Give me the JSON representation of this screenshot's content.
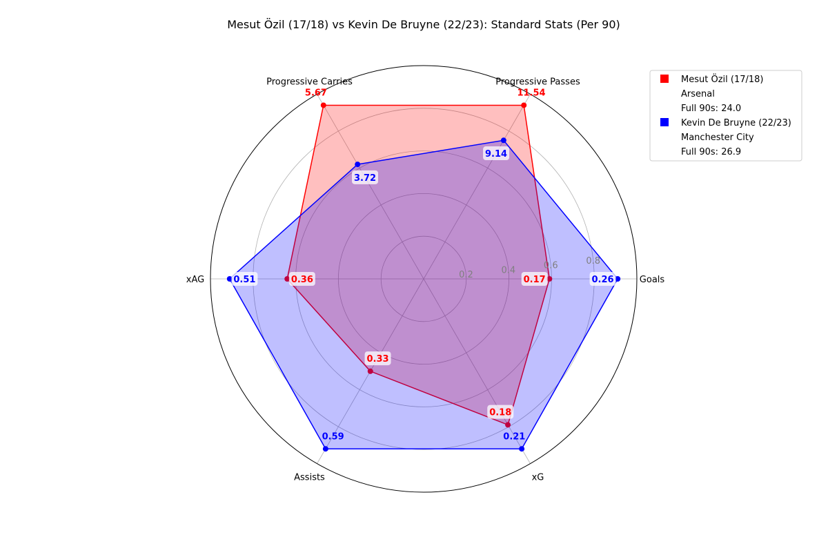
{
  "chart_data": {
    "type": "radar",
    "title": "Mesut Özil (17/18) vs Kevin De Bruyne (22/23): Standard Stats (Per 90)",
    "axes": [
      "Goals",
      "Progressive Passes",
      "Progressive Carries",
      "xAG",
      "Assists",
      "xG"
    ],
    "radial_ticks": [
      0.2,
      0.4,
      0.6,
      0.8
    ],
    "radial_range": [
      0,
      1.0
    ],
    "grid": true,
    "legend_position": "top-right",
    "series": [
      {
        "name": "Mesut Özil (17/18)",
        "team": "Arsenal",
        "full90s": "Full 90s: 24.0",
        "color": "#ff0000",
        "fill": "#ff0000",
        "values": [
          0.17,
          11.54,
          5.67,
          0.36,
          0.33,
          0.18
        ],
        "normalized": [
          0.59,
          0.94,
          0.94,
          0.64,
          0.5,
          0.79
        ]
      },
      {
        "name": "Kevin De Bruyne (22/23)",
        "team": "Manchester City",
        "full90s": "Full 90s: 26.9",
        "color": "#0000ff",
        "fill": "#0000ff",
        "values": [
          0.26,
          9.14,
          3.72,
          0.51,
          0.59,
          0.21
        ],
        "normalized": [
          0.91,
          0.75,
          0.62,
          0.91,
          0.92,
          0.92
        ]
      }
    ]
  }
}
